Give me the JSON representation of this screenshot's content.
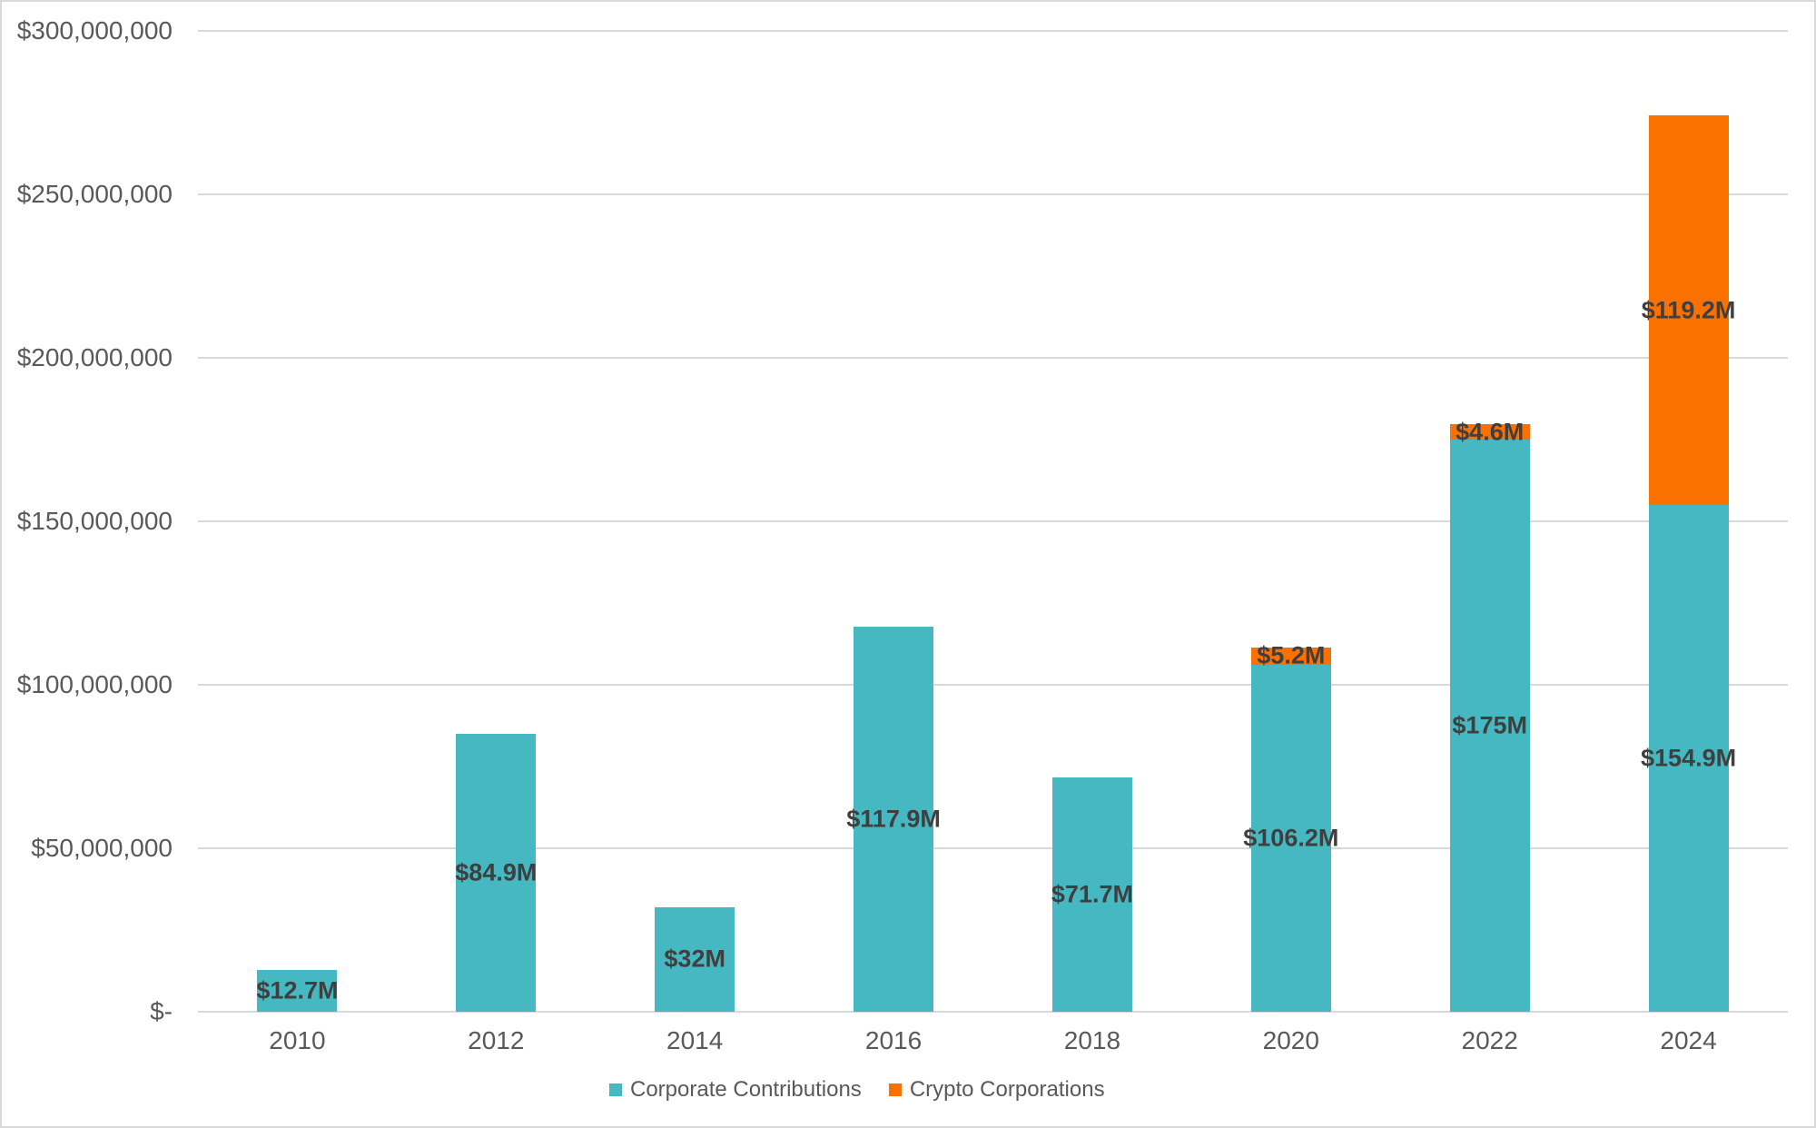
{
  "chart_data": {
    "type": "bar",
    "stacked": true,
    "title": "",
    "xlabel": "",
    "ylabel": "",
    "categories": [
      "2010",
      "2012",
      "2014",
      "2016",
      "2018",
      "2020",
      "2022",
      "2024"
    ],
    "series": [
      {
        "name": "Corporate Contributions",
        "color": "#46b8c2",
        "values_millions": [
          12.7,
          84.9,
          32,
          117.9,
          71.7,
          106.2,
          175,
          154.9
        ],
        "data_labels": [
          "$12.7M",
          "$84.9M",
          "$32M",
          "$117.9M",
          "$71.7M",
          "$106.2M",
          "$175M",
          "$154.9M"
        ]
      },
      {
        "name": "Crypto Corporations",
        "color": "#fb7100",
        "values_millions": [
          0,
          0,
          0,
          0,
          0,
          5.2,
          4.6,
          119.2
        ],
        "data_labels": [
          "",
          "",
          "",
          "",
          "",
          "$5.2M",
          "$4.6M",
          "$119.2M"
        ]
      }
    ],
    "y_axis": {
      "tick_labels": [
        "$300,000,000",
        "$250,000,000",
        "$200,000,000",
        "$150,000,000",
        "$100,000,000",
        "$50,000,000",
        "$-"
      ],
      "tick_values_millions": [
        300,
        250,
        200,
        150,
        100,
        50,
        0
      ],
      "ylim_millions": [
        0,
        300
      ]
    },
    "grid": true,
    "legend_position": "bottom",
    "legend": [
      {
        "label": "Corporate Contributions",
        "color": "#46b8c2"
      },
      {
        "label": "Crypto Corporations",
        "color": "#fb7100"
      }
    ]
  },
  "style_colors": {
    "gridline": "#d9d9d9",
    "axis_text": "#595959",
    "data_label_text": "#3f3f3f",
    "chart_border": "#d9d9d9",
    "background": "#ffffff"
  }
}
